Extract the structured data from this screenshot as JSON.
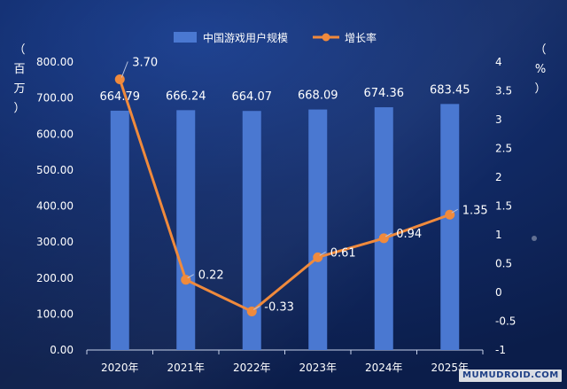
{
  "chart_data": {
    "type": "bar",
    "categories": [
      "2020年",
      "2021年",
      "2022年",
      "2023年",
      "2024年",
      "2025年"
    ],
    "series": [
      {
        "name": "中国游戏用户规模",
        "type": "bar",
        "axis": "left",
        "values": [
          664.79,
          666.24,
          664.07,
          668.09,
          674.36,
          683.45
        ],
        "labels": [
          "664.79",
          "666.24",
          "664.07",
          "668.09",
          "674.36",
          "683.45"
        ],
        "color": "#4a78d1"
      },
      {
        "name": "增长率",
        "type": "line",
        "axis": "right",
        "values": [
          3.7,
          0.22,
          -0.33,
          0.61,
          0.94,
          1.35
        ],
        "labels": [
          "3.70",
          "0.22",
          "-0.33",
          "0.61",
          "0.94",
          "1.35"
        ],
        "color": "#f08a3c"
      }
    ],
    "y_left": {
      "label_chars": [
        "（",
        "百",
        "万",
        "）"
      ],
      "range": [
        0,
        800
      ],
      "ticks": [
        "0.00",
        "100.00",
        "200.00",
        "300.00",
        "400.00",
        "500.00",
        "600.00",
        "700.00",
        "800.00"
      ]
    },
    "y_right": {
      "label_chars": [
        "（",
        "%",
        "）"
      ],
      "range": [
        -1,
        4
      ],
      "ticks": [
        "-1",
        "-0.5",
        "0",
        "0.5",
        "1",
        "1.5",
        "2",
        "2.5",
        "3",
        "3.5",
        "4"
      ]
    },
    "legend_position": "top-center",
    "grid": false
  },
  "watermark": "MUMUDROID.COM",
  "colors": {
    "axis_text": "#ffffff",
    "axis_line": "#c8d2ea"
  }
}
